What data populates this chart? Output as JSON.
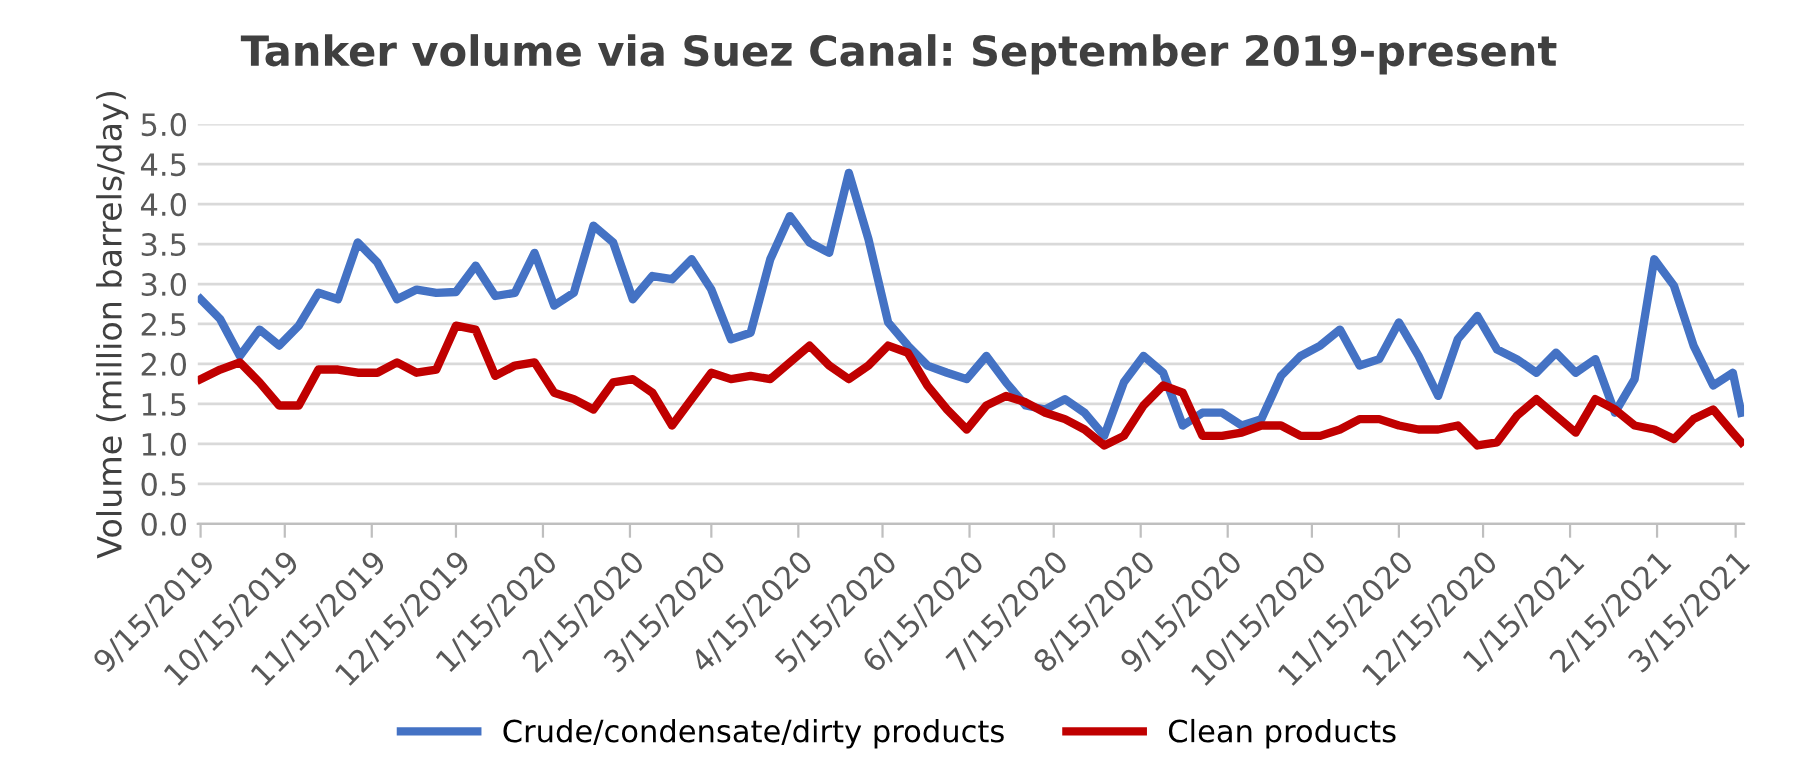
{
  "chart_data": {
    "type": "line",
    "title": "Tanker volume via Suez Canal: September 2019-present",
    "ylabel": "Volume (million barrels/day)",
    "x": [
      "2019-09-15",
      "2019-09-22",
      "2019-09-29",
      "2019-10-06",
      "2019-10-13",
      "2019-10-20",
      "2019-10-27",
      "2019-11-03",
      "2019-11-10",
      "2019-11-17",
      "2019-11-24",
      "2019-12-01",
      "2019-12-08",
      "2019-12-15",
      "2019-12-22",
      "2019-12-29",
      "2020-01-05",
      "2020-01-12",
      "2020-01-19",
      "2020-01-26",
      "2020-02-02",
      "2020-02-09",
      "2020-02-16",
      "2020-02-23",
      "2020-03-01",
      "2020-03-08",
      "2020-03-15",
      "2020-03-22",
      "2020-03-29",
      "2020-04-05",
      "2020-04-12",
      "2020-04-19",
      "2020-04-26",
      "2020-05-03",
      "2020-05-10",
      "2020-05-17",
      "2020-05-24",
      "2020-05-31",
      "2020-06-07",
      "2020-06-14",
      "2020-06-21",
      "2020-06-28",
      "2020-07-05",
      "2020-07-12",
      "2020-07-19",
      "2020-07-26",
      "2020-08-02",
      "2020-08-09",
      "2020-08-16",
      "2020-08-23",
      "2020-08-30",
      "2020-09-06",
      "2020-09-13",
      "2020-09-20",
      "2020-09-27",
      "2020-10-04",
      "2020-10-11",
      "2020-10-18",
      "2020-10-25",
      "2020-11-01",
      "2020-11-08",
      "2020-11-15",
      "2020-11-22",
      "2020-11-29",
      "2020-12-06",
      "2020-12-13",
      "2020-12-20",
      "2020-12-27",
      "2021-01-03",
      "2021-01-10",
      "2021-01-17",
      "2021-01-24",
      "2021-01-31",
      "2021-02-07",
      "2021-02-14",
      "2021-02-21",
      "2021-02-28",
      "2021-03-07",
      "2021-03-14",
      "2021-03-17"
    ],
    "series": [
      {
        "name": "Crude/condensate/dirty products",
        "color": "#4472c4",
        "values": [
          2.81,
          2.56,
          2.1,
          2.43,
          2.23,
          2.48,
          2.89,
          2.81,
          3.52,
          3.27,
          2.81,
          2.93,
          2.89,
          2.9,
          3.23,
          2.85,
          2.89,
          3.39,
          2.73,
          2.89,
          3.73,
          3.52,
          2.81,
          3.1,
          3.06,
          3.31,
          2.93,
          2.31,
          2.39,
          3.31,
          3.85,
          3.52,
          3.39,
          4.39,
          3.56,
          2.52,
          2.23,
          1.98,
          1.89,
          1.81,
          2.1,
          1.77,
          1.48,
          1.43,
          1.56,
          1.39,
          1.1,
          1.77,
          2.1,
          1.89,
          1.23,
          1.39,
          1.39,
          1.23,
          1.31,
          1.85,
          2.1,
          2.23,
          2.43,
          1.98,
          2.06,
          2.52,
          2.1,
          1.6,
          2.31,
          2.6,
          2.18,
          2.06,
          1.89,
          2.14,
          1.89,
          2.06,
          1.39,
          1.81,
          3.31,
          2.98,
          2.23,
          1.73,
          1.89,
          1.39
        ]
      },
      {
        "name": "Clean products",
        "color": "#c00000",
        "values": [
          1.81,
          1.93,
          2.02,
          1.77,
          1.48,
          1.48,
          1.93,
          1.93,
          1.89,
          1.89,
          2.02,
          1.89,
          1.93,
          2.48,
          2.43,
          1.85,
          1.98,
          2.02,
          1.64,
          1.56,
          1.43,
          1.77,
          1.81,
          1.64,
          1.23,
          1.56,
          1.89,
          1.81,
          1.85,
          1.81,
          2.02,
          2.23,
          1.98,
          1.81,
          1.98,
          2.23,
          2.14,
          1.73,
          1.43,
          1.18,
          1.48,
          1.6,
          1.52,
          1.39,
          1.31,
          1.18,
          0.98,
          1.1,
          1.48,
          1.73,
          1.64,
          1.1,
          1.1,
          1.14,
          1.23,
          1.23,
          1.1,
          1.1,
          1.18,
          1.31,
          1.31,
          1.23,
          1.18,
          1.18,
          1.23,
          0.98,
          1.02,
          1.35,
          1.56,
          1.35,
          1.14,
          1.56,
          1.43,
          1.23,
          1.18,
          1.06,
          1.31,
          1.43,
          1.14,
          1.02
        ]
      }
    ],
    "xlim": [
      "2019-09-14",
      "2021-03-18"
    ],
    "xticks": [
      {
        "value": "2019-09-15",
        "label": "9/15/2019"
      },
      {
        "value": "2019-10-15",
        "label": "10/15/2019"
      },
      {
        "value": "2019-11-15",
        "label": "11/15/2019"
      },
      {
        "value": "2019-12-15",
        "label": "12/15/2019"
      },
      {
        "value": "2020-01-15",
        "label": "1/15/2020"
      },
      {
        "value": "2020-02-15",
        "label": "2/15/2020"
      },
      {
        "value": "2020-03-15",
        "label": "3/15/2020"
      },
      {
        "value": "2020-04-15",
        "label": "4/15/2020"
      },
      {
        "value": "2020-05-15",
        "label": "5/15/2020"
      },
      {
        "value": "2020-06-15",
        "label": "6/15/2020"
      },
      {
        "value": "2020-07-15",
        "label": "7/15/2020"
      },
      {
        "value": "2020-08-15",
        "label": "8/15/2020"
      },
      {
        "value": "2020-09-15",
        "label": "9/15/2020"
      },
      {
        "value": "2020-10-15",
        "label": "10/15/2020"
      },
      {
        "value": "2020-11-15",
        "label": "11/15/2020"
      },
      {
        "value": "2020-12-15",
        "label": "12/15/2020"
      },
      {
        "value": "2021-01-15",
        "label": "1/15/2021"
      },
      {
        "value": "2021-02-15",
        "label": "2/15/2021"
      },
      {
        "value": "2021-03-15",
        "label": "3/15/2021"
      }
    ],
    "ylim": [
      0,
      5
    ],
    "yticks": [
      {
        "value": 0,
        "label": "0.0"
      },
      {
        "value": 0.5,
        "label": "0.5"
      },
      {
        "value": 1,
        "label": "1.0"
      },
      {
        "value": 1.5,
        "label": "1.5"
      },
      {
        "value": 2,
        "label": "2.0"
      },
      {
        "value": 2.5,
        "label": "2.5"
      },
      {
        "value": 3,
        "label": "3.0"
      },
      {
        "value": 3.5,
        "label": "3.5"
      },
      {
        "value": 4,
        "label": "4.0"
      },
      {
        "value": 4.5,
        "label": "4.5"
      },
      {
        "value": 5,
        "label": "5.0"
      }
    ],
    "grid": "y",
    "legend": "bottom",
    "marker": "none",
    "line_style": "solid"
  }
}
